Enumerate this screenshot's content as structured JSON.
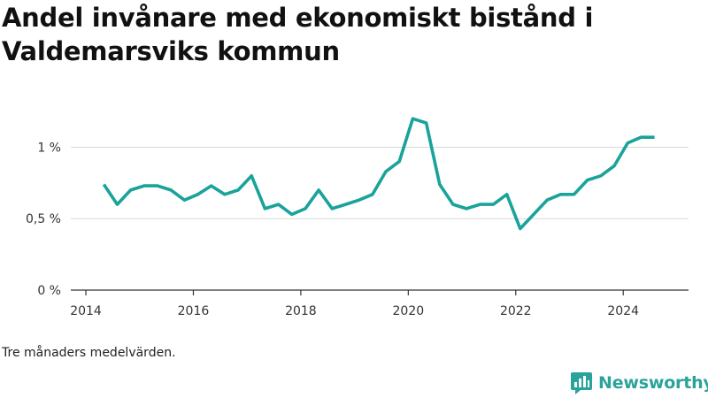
{
  "title": "Andel invånare med ekonomiskt bistånd i Valdemarsviks kommun",
  "footnote": "Tre månaders medelvärden.",
  "brand": {
    "name": "Newsworthy",
    "icon": "newsworthy-logo-icon",
    "color": "#2aa39a"
  },
  "chart_data": {
    "type": "line",
    "title": "Andel invånare med ekonomiskt bistånd i Valdemarsviks kommun",
    "xlabel": "",
    "ylabel": "",
    "x_ticks": [
      "2014",
      "2016",
      "2018",
      "2020",
      "2022",
      "2024"
    ],
    "y_ticks": [
      "0 %",
      "0,5 %",
      "1 %"
    ],
    "y_tick_values": [
      0,
      0.5,
      1
    ],
    "xlim": [
      2013.95,
      2025.1
    ],
    "ylim": [
      0,
      1.3
    ],
    "grid": true,
    "line_color": "#1aa39a",
    "series": [
      {
        "x": [
          "2014-05",
          "2014-08",
          "2014-11",
          "2015-02",
          "2015-05",
          "2015-08",
          "2015-11",
          "2016-02",
          "2016-05",
          "2016-08",
          "2016-11",
          "2017-02",
          "2017-05",
          "2017-08",
          "2017-11",
          "2018-02",
          "2018-05",
          "2018-08",
          "2018-11",
          "2019-02",
          "2019-05",
          "2019-08",
          "2019-11",
          "2020-02",
          "2020-05",
          "2020-08",
          "2020-11",
          "2021-02",
          "2021-05",
          "2021-08",
          "2021-11",
          "2022-02",
          "2022-05",
          "2022-08",
          "2022-11",
          "2023-02",
          "2023-05",
          "2023-08",
          "2023-11",
          "2024-02",
          "2024-05",
          "2024-08"
        ],
        "values": [
          0.74,
          0.6,
          0.7,
          0.73,
          0.73,
          0.7,
          0.63,
          0.67,
          0.73,
          0.67,
          0.7,
          0.8,
          0.57,
          0.6,
          0.53,
          0.57,
          0.7,
          0.57,
          0.6,
          0.63,
          0.67,
          0.83,
          0.9,
          1.2,
          1.17,
          0.74,
          0.6,
          0.57,
          0.6,
          0.6,
          0.67,
          0.43,
          0.53,
          0.63,
          0.67,
          0.67,
          0.77,
          0.8,
          0.87,
          1.03,
          1.07,
          1.07
        ]
      }
    ]
  }
}
